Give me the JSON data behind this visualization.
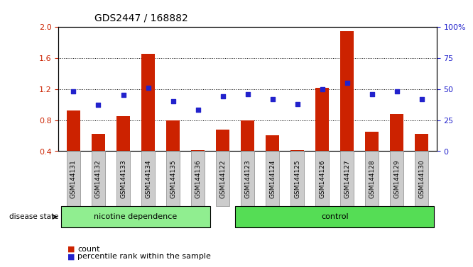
{
  "title": "GDS2447 / 168882",
  "samples": [
    "GSM144131",
    "GSM144132",
    "GSM144133",
    "GSM144134",
    "GSM144135",
    "GSM144136",
    "GSM144122",
    "GSM144123",
    "GSM144124",
    "GSM144125",
    "GSM144126",
    "GSM144127",
    "GSM144128",
    "GSM144129",
    "GSM144130"
  ],
  "count_values": [
    0.92,
    0.62,
    0.85,
    1.65,
    0.8,
    0.41,
    0.68,
    0.8,
    0.6,
    0.41,
    1.22,
    1.95,
    0.65,
    0.88,
    0.62
  ],
  "percentile_values": [
    48,
    37,
    45,
    51,
    40,
    33,
    44,
    46,
    42,
    38,
    50,
    55,
    46,
    48,
    42
  ],
  "bar_color": "#cc2200",
  "dot_color": "#2222cc",
  "ylim_left": [
    0.4,
    2.0
  ],
  "ylim_right": [
    0,
    100
  ],
  "yticks_left": [
    0.4,
    0.8,
    1.2,
    1.6,
    2.0
  ],
  "yticks_right": [
    0,
    25,
    50,
    75,
    100
  ],
  "group1_label": "nicotine dependence",
  "group2_label": "control",
  "group1_n": 6,
  "group2_n": 9,
  "disease_state_label": "disease state",
  "legend_count": "count",
  "legend_percentile": "percentile rank within the sample",
  "bg_color": "#ffffff",
  "tick_box_color": "#cccccc",
  "group1_color": "#90ee90",
  "group2_color": "#55dd55"
}
